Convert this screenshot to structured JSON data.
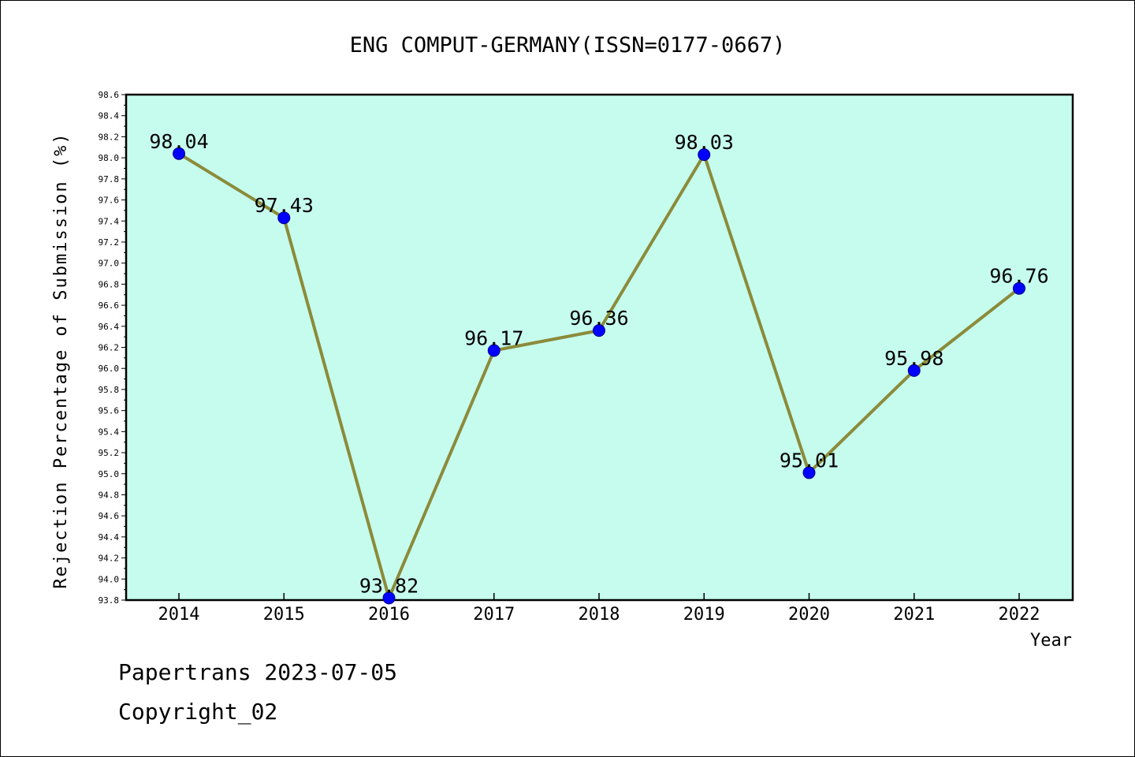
{
  "chart_data": {
    "type": "line",
    "title": "ENG COMPUT-GERMANY(ISSN=0177-0667)",
    "xlabel": "Year",
    "ylabel": "Rejection Percentage of Submission (%)",
    "categories": [
      "2014",
      "2015",
      "2016",
      "2017",
      "2018",
      "2019",
      "2020",
      "2021",
      "2022"
    ],
    "series": [
      {
        "values": [
          98.04,
          97.43,
          93.82,
          96.17,
          96.36,
          98.03,
          95.01,
          95.98,
          96.76
        ],
        "labels": [
          "98.04",
          "97.43",
          "93.82",
          "96.17",
          "96.36",
          "98.03",
          "95.01",
          "95.98",
          "96.76"
        ]
      }
    ],
    "ylim": [
      93.8,
      98.6
    ],
    "yticks": [
      "93.8",
      "94.0",
      "94.2",
      "94.4",
      "94.6",
      "94.8",
      "95.0",
      "95.2",
      "95.4",
      "95.6",
      "95.8",
      "96.0",
      "96.2",
      "96.4",
      "96.6",
      "96.8",
      "97.0",
      "97.2",
      "97.4",
      "97.6",
      "97.8",
      "98.0",
      "98.2",
      "98.4",
      "98.6"
    ],
    "grid": false,
    "colors": {
      "plot_background": "#c6fcee",
      "line": "#8b8b3a",
      "marker": "#0000ff"
    }
  },
  "footer": {
    "line1": "Papertrans 2023-07-05",
    "line2": "Copyright_02"
  }
}
